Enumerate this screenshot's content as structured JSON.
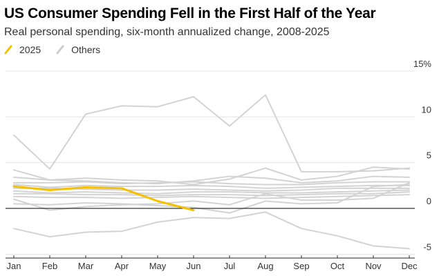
{
  "chart_data": {
    "type": "line",
    "title": "US Consumer Spending Fell in the First Half of the Year",
    "subtitle": "Real personal spending, six-month annualized change, 2008-2025",
    "categories": [
      "Jan",
      "Feb",
      "Mar",
      "Apr",
      "May",
      "Jun",
      "Jul",
      "Aug",
      "Sep",
      "Oct",
      "Nov",
      "Dec"
    ],
    "y_ticks": [
      "15%",
      "10",
      "5",
      "0",
      "-5"
    ],
    "ylim": [
      -5,
      15
    ],
    "legend": [
      {
        "label": "2025",
        "color": "#f5c000"
      },
      {
        "label": "Others",
        "color": "#cccccc"
      }
    ],
    "highlight_series": {
      "name": "2025",
      "values": [
        2.4,
        2.0,
        2.3,
        2.2,
        0.8,
        -0.2
      ]
    },
    "other_series": [
      {
        "values": [
          8.0,
          4.3,
          10.3,
          11.2,
          11.1,
          12.2,
          9.0,
          12.4,
          4.0,
          4.0,
          4.1,
          4.4
        ]
      },
      {
        "values": [
          4.2,
          3.1,
          3.3,
          3.1,
          3.0,
          2.6,
          3.2,
          4.4,
          3.1,
          3.5,
          4.5,
          4.3
        ]
      },
      {
        "values": [
          3.4,
          3.1,
          3.0,
          2.8,
          2.7,
          3.0,
          3.5,
          3.3,
          2.8,
          3.0,
          3.5,
          3.4
        ]
      },
      {
        "values": [
          2.8,
          2.8,
          2.9,
          2.7,
          2.8,
          2.9,
          2.7,
          2.6,
          2.6,
          2.8,
          2.9,
          2.9
        ]
      },
      {
        "values": [
          2.6,
          2.3,
          2.5,
          2.4,
          2.4,
          2.5,
          2.4,
          2.2,
          2.3,
          2.4,
          2.5,
          2.5
        ]
      },
      {
        "values": [
          2.2,
          2.2,
          2.1,
          2.0,
          2.0,
          2.1,
          2.0,
          1.9,
          2.0,
          2.2,
          2.2,
          2.2
        ]
      },
      {
        "values": [
          1.9,
          1.7,
          1.8,
          1.7,
          1.6,
          1.8,
          1.8,
          1.7,
          1.7,
          1.8,
          1.9,
          2.0
        ]
      },
      {
        "values": [
          1.6,
          1.6,
          1.5,
          1.5,
          1.4,
          1.5,
          1.5,
          1.4,
          1.5,
          1.6,
          1.6,
          1.8
        ]
      },
      {
        "values": [
          1.3,
          1.2,
          1.2,
          1.1,
          1.2,
          1.3,
          1.2,
          1.1,
          1.2,
          1.3,
          1.4,
          1.5
        ]
      },
      {
        "values": [
          1.0,
          -0.2,
          0.2,
          0.4,
          0.5,
          0.8,
          0.4,
          1.6,
          0.9,
          0.9,
          1.1,
          2.8
        ]
      },
      {
        "values": [
          0.5,
          0.4,
          0.6,
          0.5,
          0.3,
          0.1,
          -0.5,
          0.8,
          0.5,
          0.6,
          2.4,
          2.6
        ]
      },
      {
        "values": [
          -2.2,
          -3.1,
          -2.6,
          -2.5,
          -1.5,
          -1.0,
          -1.1,
          -0.4,
          -2.2,
          -3.0,
          -4.1,
          -4.4
        ]
      }
    ]
  }
}
